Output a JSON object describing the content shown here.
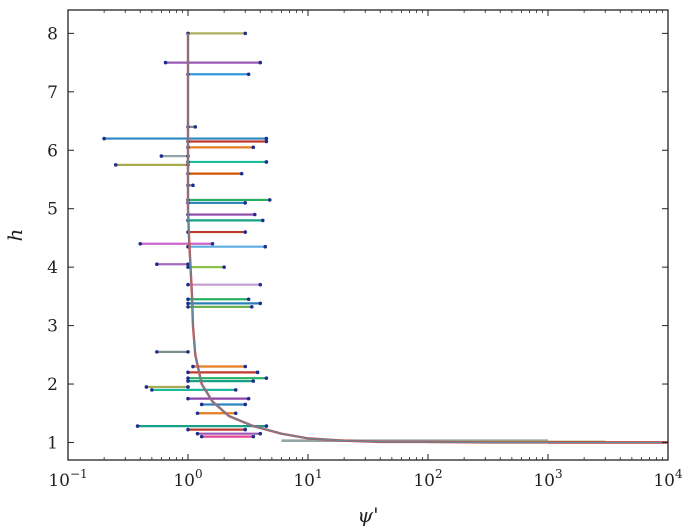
{
  "chart_data": {
    "type": "line",
    "title": "",
    "xlabel": "ψ'",
    "ylabel": "h",
    "xscale": "log",
    "xlim": [
      0.1,
      10000
    ],
    "ylim": [
      0.7,
      8.4
    ],
    "x_ticks": [
      {
        "value": 0.1,
        "base": "10",
        "exp": "−1"
      },
      {
        "value": 1,
        "base": "10",
        "exp": "0"
      },
      {
        "value": 10,
        "base": "10",
        "exp": "1"
      },
      {
        "value": 100,
        "base": "10",
        "exp": "2"
      },
      {
        "value": 1000,
        "base": "10",
        "exp": "3"
      },
      {
        "value": 10000,
        "base": "10",
        "exp": "4"
      }
    ],
    "y_ticks": [
      {
        "value": 1,
        "label": "1"
      },
      {
        "value": 2,
        "label": "2"
      },
      {
        "value": 3,
        "label": "3"
      },
      {
        "value": 4,
        "label": "4"
      },
      {
        "value": 5,
        "label": "5"
      },
      {
        "value": 6,
        "label": "6"
      },
      {
        "value": 7,
        "label": "7"
      },
      {
        "value": 8,
        "label": "8"
      }
    ],
    "grid": false,
    "legend": false,
    "main_curve": {
      "x": [
        1.0,
        1.0,
        1.0,
        1.02,
        1.05,
        1.08,
        1.1,
        1.15,
        1.3,
        1.6,
        2.2,
        3.5,
        6,
        10,
        20,
        40,
        100,
        300,
        1000,
        3000,
        10000
      ],
      "y": [
        8.0,
        6.5,
        5.0,
        4.5,
        4.0,
        3.5,
        3.0,
        2.5,
        2.0,
        1.7,
        1.45,
        1.28,
        1.15,
        1.07,
        1.03,
        1.01,
        1.01,
        1.0,
        1.0,
        1.0,
        1.0
      ],
      "color": "#c0504d"
    },
    "perturbation_segments": [
      {
        "y": 8.0,
        "x0": 1.0,
        "x1": 3.0,
        "color": "#b0b060"
      },
      {
        "y": 7.5,
        "x0": 0.65,
        "x1": 4.0,
        "color": "#9b59b6"
      },
      {
        "y": 7.3,
        "x0": 1.0,
        "x1": 3.2,
        "color": "#3498db"
      },
      {
        "y": 6.4,
        "x0": 1.0,
        "x1": 1.15,
        "color": "#7f8c8d"
      },
      {
        "y": 6.2,
        "x0": 0.2,
        "x1": 4.5,
        "color": "#2e86c1"
      },
      {
        "y": 6.15,
        "x0": 1.0,
        "x1": 4.5,
        "color": "#c0392b"
      },
      {
        "y": 6.05,
        "x0": 1.0,
        "x1": 3.5,
        "color": "#e67e22"
      },
      {
        "y": 5.9,
        "x0": 0.6,
        "x1": 1.0,
        "color": "#95a5a6"
      },
      {
        "y": 5.8,
        "x0": 1.0,
        "x1": 4.5,
        "color": "#1abc9c"
      },
      {
        "y": 5.75,
        "x0": 0.25,
        "x1": 1.0,
        "color": "#a9a94f"
      },
      {
        "y": 5.6,
        "x0": 1.0,
        "x1": 2.8,
        "color": "#d35400"
      },
      {
        "y": 5.4,
        "x0": 1.0,
        "x1": 1.1,
        "color": "#7f8c8d"
      },
      {
        "y": 5.15,
        "x0": 1.0,
        "x1": 4.8,
        "color": "#27ae60"
      },
      {
        "y": 5.1,
        "x0": 1.0,
        "x1": 3.0,
        "color": "#2e86c1"
      },
      {
        "y": 4.9,
        "x0": 1.0,
        "x1": 3.6,
        "color": "#8e44ad"
      },
      {
        "y": 4.8,
        "x0": 1.0,
        "x1": 4.2,
        "color": "#16a085"
      },
      {
        "y": 4.6,
        "x0": 1.0,
        "x1": 3.0,
        "color": "#c0392b"
      },
      {
        "y": 4.4,
        "x0": 0.4,
        "x1": 1.6,
        "color": "#cc66cc"
      },
      {
        "y": 4.35,
        "x0": 1.0,
        "x1": 4.4,
        "color": "#5dade2"
      },
      {
        "y": 4.05,
        "x0": 0.55,
        "x1": 1.0,
        "color": "#a569bd"
      },
      {
        "y": 4.0,
        "x0": 1.0,
        "x1": 2.0,
        "color": "#8bc34a"
      },
      {
        "y": 3.7,
        "x0": 1.0,
        "x1": 4.0,
        "color": "#c39bd3"
      },
      {
        "y": 3.45,
        "x0": 1.0,
        "x1": 3.2,
        "color": "#27ae60"
      },
      {
        "y": 3.38,
        "x0": 1.0,
        "x1": 4.0,
        "color": "#2980b9"
      },
      {
        "y": 3.32,
        "x0": 1.0,
        "x1": 3.4,
        "color": "#6ab04c"
      },
      {
        "y": 2.55,
        "x0": 0.55,
        "x1": 1.0,
        "color": "#7f8c8d"
      },
      {
        "y": 2.3,
        "x0": 1.1,
        "x1": 3.0,
        "color": "#e67e22"
      },
      {
        "y": 2.2,
        "x0": 1.0,
        "x1": 3.8,
        "color": "#c0392b"
      },
      {
        "y": 2.1,
        "x0": 1.0,
        "x1": 4.5,
        "color": "#27ae60"
      },
      {
        "y": 2.05,
        "x0": 1.0,
        "x1": 3.5,
        "color": "#16a085"
      },
      {
        "y": 1.95,
        "x0": 0.45,
        "x1": 1.0,
        "color": "#a9a94f"
      },
      {
        "y": 1.9,
        "x0": 0.5,
        "x1": 2.5,
        "color": "#1abc9c"
      },
      {
        "y": 1.75,
        "x0": 1.0,
        "x1": 3.2,
        "color": "#8e44ad"
      },
      {
        "y": 1.65,
        "x0": 1.3,
        "x1": 3.0,
        "color": "#2e86c1"
      },
      {
        "y": 1.5,
        "x0": 1.2,
        "x1": 2.5,
        "color": "#e67e22"
      },
      {
        "y": 1.28,
        "x0": 0.38,
        "x1": 4.5,
        "color": "#16a085"
      },
      {
        "y": 1.22,
        "x0": 1.0,
        "x1": 3.0,
        "color": "#c0392b"
      },
      {
        "y": 1.15,
        "x0": 1.2,
        "x1": 4.0,
        "color": "#9b59b6"
      },
      {
        "y": 1.1,
        "x0": 1.3,
        "x1": 3.5,
        "color": "#e84393"
      }
    ],
    "flat_tail": [
      {
        "x0": 6,
        "x1": 1000,
        "y": 1.03,
        "color": "#95a5a6"
      },
      {
        "x0": 100,
        "x1": 3000,
        "y": 1.01,
        "color": "#a9a94f"
      },
      {
        "x0": 1000,
        "x1": 10000,
        "y": 1.0,
        "color": "#e74c3c"
      }
    ],
    "colors": {
      "axis": "#222222",
      "marker": "#1f2d8a",
      "background": "#ffffff"
    }
  }
}
